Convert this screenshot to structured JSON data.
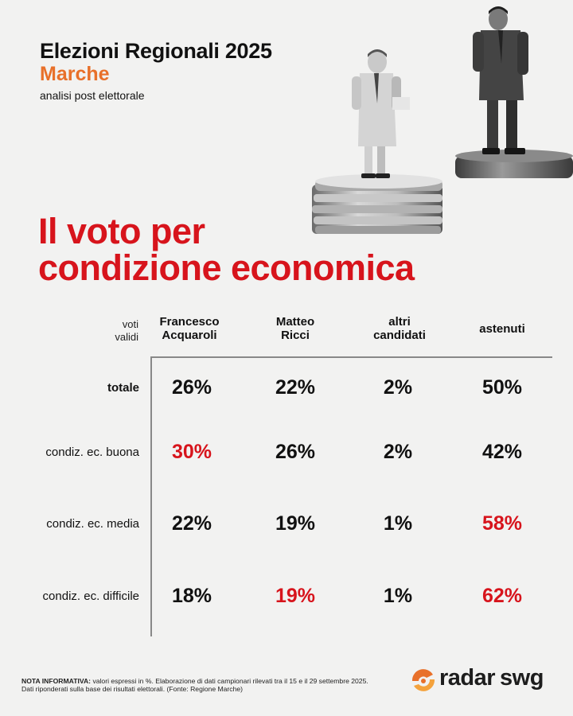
{
  "header": {
    "title": "Elezioni Regionali 2025",
    "region": "Marche",
    "subtitle": "analisi post elettorale"
  },
  "headline": {
    "line1": "Il voto per",
    "line2": "condizione economica"
  },
  "chart_data": {
    "type": "table",
    "corner_label": [
      "voti",
      "validi"
    ],
    "columns": [
      {
        "line1": "Francesco",
        "line2": "Acquaroli"
      },
      {
        "line1": "Matteo",
        "line2": "Ricci"
      },
      {
        "line1": "altri",
        "line2": "candidati"
      },
      {
        "line1": "astenuti",
        "line2": ""
      }
    ],
    "rows": [
      {
        "label": "totale",
        "bold": true,
        "values": [
          "26%",
          "22%",
          "2%",
          "50%"
        ],
        "highlight": [
          false,
          false,
          false,
          false
        ]
      },
      {
        "label": "condiz. ec. buona",
        "bold": false,
        "values": [
          "30%",
          "26%",
          "2%",
          "42%"
        ],
        "highlight": [
          true,
          false,
          false,
          false
        ]
      },
      {
        "label": "condiz. ec. media",
        "bold": false,
        "values": [
          "22%",
          "19%",
          "1%",
          "58%"
        ],
        "highlight": [
          false,
          false,
          false,
          true
        ]
      },
      {
        "label": "condiz. ec. difficile",
        "bold": false,
        "values": [
          "18%",
          "19%",
          "1%",
          "62%"
        ],
        "highlight": [
          false,
          true,
          false,
          true
        ]
      }
    ],
    "highlight_color": "#d7141c"
  },
  "note": {
    "label": "NOTA INFORMATIVA:",
    "line1": "valori espressi in %. Elaborazione di dati campionari rilevati tra il 15 e il 29 settembre 2025.",
    "line2": "Dati riponderati sulla base dei risultati elettorali. (Fonte: Regione Marche)"
  },
  "logo": {
    "word1": "radar",
    "word2": "swg"
  },
  "colors": {
    "accent_red": "#d7141c",
    "accent_orange": "#e8702a",
    "background": "#f2f2f1"
  }
}
